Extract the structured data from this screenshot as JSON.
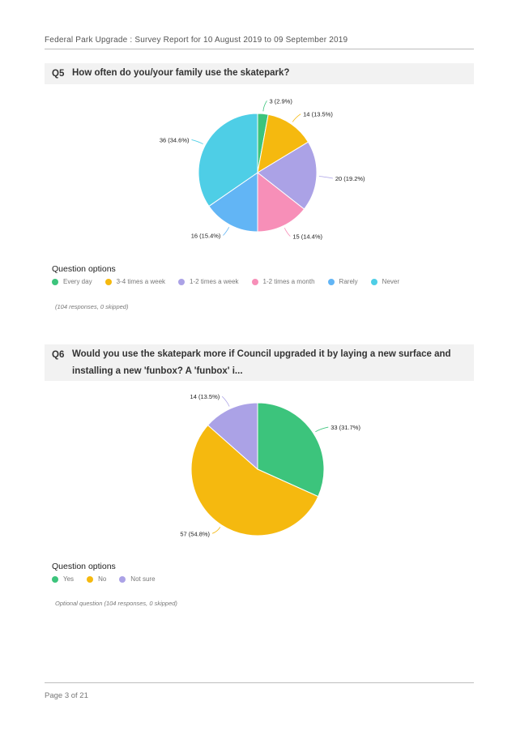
{
  "header": {
    "title": "Federal Park Upgrade : Survey Report for 10 August 2019 to 09 September 2019"
  },
  "q5": {
    "number": "Q5",
    "question": "How often do you/your family use the skatepark?",
    "options_title": "Question options",
    "note": "(104 responses, 0 skipped)",
    "chart_data": {
      "type": "pie",
      "slices": [
        {
          "name": "Every day",
          "value": 3,
          "label": "3 (2.9%)",
          "color": "#3cc47c"
        },
        {
          "name": "3-4 times a week",
          "value": 14,
          "label": "14 (13.5%)",
          "color": "#f5b90f"
        },
        {
          "name": "1-2 times a week",
          "value": 20,
          "label": "20 (19.2%)",
          "color": "#aba2e6"
        },
        {
          "name": "1-2 times a month",
          "value": 15,
          "label": "15 (14.4%)",
          "color": "#f78fb8"
        },
        {
          "name": "Rarely",
          "value": 16,
          "label": "16 (15.4%)",
          "color": "#62b5f5"
        },
        {
          "name": "Never",
          "value": 36,
          "label": "36 (34.6%)",
          "color": "#4ecee6"
        }
      ]
    }
  },
  "q6": {
    "number": "Q6",
    "question": "Would you use the skatepark more if Council upgraded it by laying a new surface and installing a new 'funbox? A 'funbox' i...",
    "options_title": "Question options",
    "note": "Optional question (104 responses, 0 skipped)",
    "chart_data": {
      "type": "pie",
      "slices": [
        {
          "name": "Yes",
          "value": 33,
          "label": "33 (31.7%)",
          "color": "#3cc47c"
        },
        {
          "name": "No",
          "value": 57,
          "label": "57 (54.8%)",
          "color": "#f5b90f"
        },
        {
          "name": "Not sure",
          "value": 14,
          "label": "14 (13.5%)",
          "color": "#aba2e6"
        }
      ]
    }
  },
  "footer": {
    "page": "Page 3 of 21"
  }
}
